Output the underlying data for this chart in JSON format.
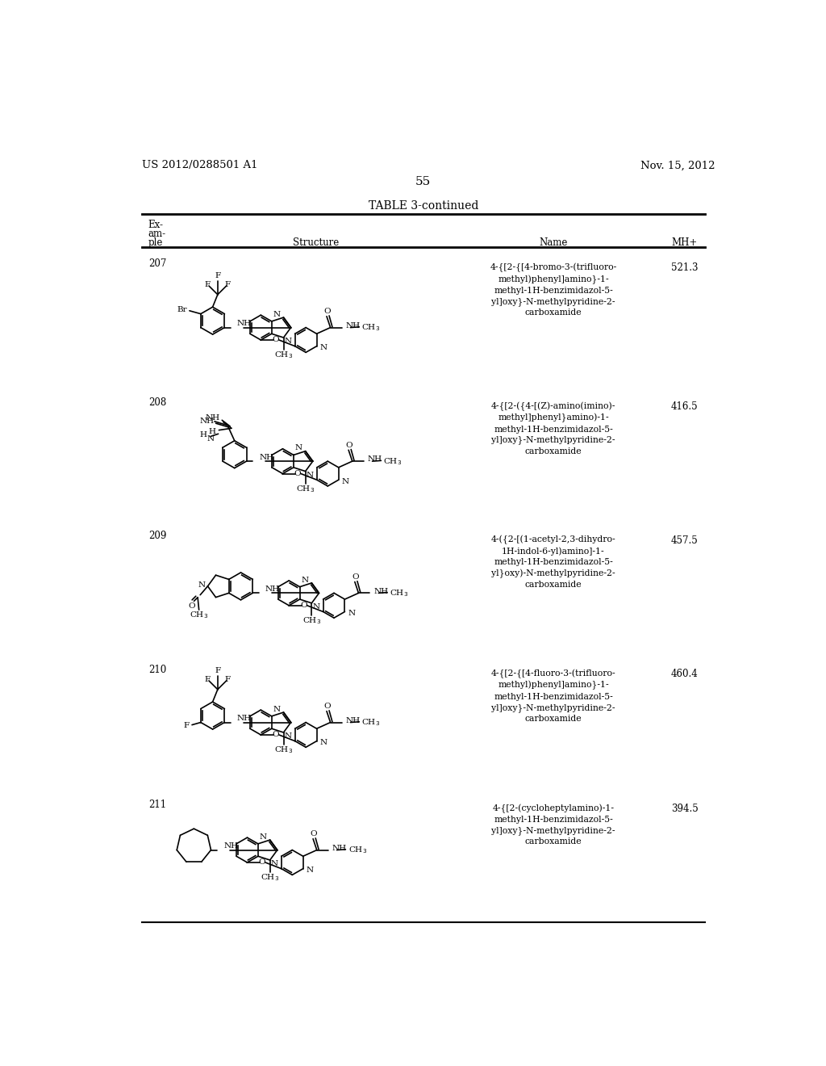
{
  "page_header_left": "US 2012/0288501 A1",
  "page_header_right": "Nov. 15, 2012",
  "page_number": "55",
  "table_title": "TABLE 3-continued",
  "background_color": "#ffffff",
  "text_color": "#000000",
  "rows": [
    {
      "example": "207",
      "name": "4-{[2-{[4-bromo-3-(trifluoro-\nmethyl)phenyl]amino}-1-\nmethyl-1H-benzimidazol-5-\nyl]oxy}-N-methylpyridine-2-\ncarboxamide",
      "mh": "521.3"
    },
    {
      "example": "208",
      "name": "4-{[2-({4-[(Z)-amino(imino)-\nmethyl]phenyl}amino)-1-\nmethyl-1H-benzimidazol-5-\nyl]oxy}-N-methylpyridine-2-\ncarboxamide",
      "mh": "416.5"
    },
    {
      "example": "209",
      "name": "4-({2-[(1-acetyl-2,3-dihydro-\n1H-indol-6-yl)amino]-1-\nmethyl-1H-benzimidazol-5-\nyl}oxy)-N-methylpyridine-2-\ncarboxamide",
      "mh": "457.5"
    },
    {
      "example": "210",
      "name": "4-{[2-{[4-fluoro-3-(trifluoro-\nmethyl)phenyl]amino}-1-\nmethyl-1H-benzimidazol-5-\nyl]oxy}-N-methylpyridine-2-\ncarboxamide",
      "mh": "460.4"
    },
    {
      "example": "211",
      "name": "4-{[2-(cycloheptylamino)-1-\nmethyl-1H-benzimidazol-5-\nyl]oxy}-N-methylpyridine-2-\ncarboxamide",
      "mh": "394.5"
    }
  ]
}
